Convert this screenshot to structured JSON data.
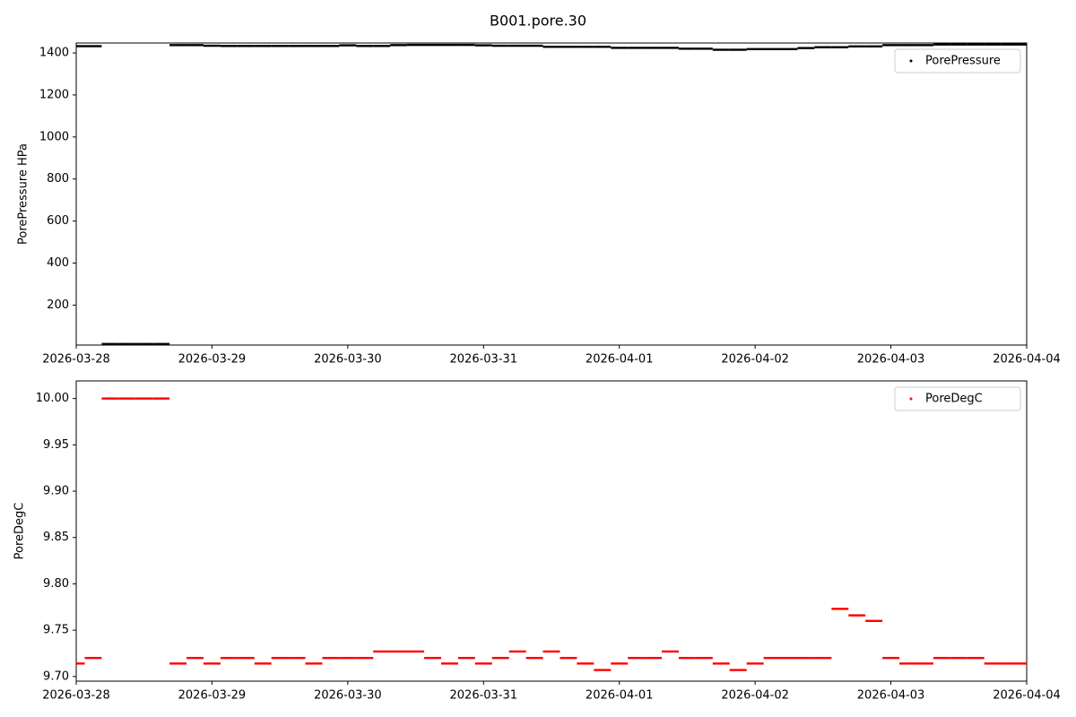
{
  "title": "B001.pore.30",
  "chart_data": [
    {
      "type": "scatter",
      "ylabel": "PorePressure HPa",
      "legend": "upper right",
      "xlim": [
        "2026-03-28",
        "2026-04-04"
      ],
      "xticks": [
        "2026-03-28",
        "2026-03-29",
        "2026-03-30",
        "2026-03-31",
        "2026-04-01",
        "2026-04-02",
        "2026-04-03",
        "2026-04-04"
      ],
      "ylim": [
        10,
        1447
      ],
      "yticks": [
        200,
        400,
        600,
        800,
        1000,
        1200,
        1400
      ],
      "x": [
        "2026-03-28T00:00",
        "2026-03-28T03:00",
        "2026-03-28T06:00",
        "2026-03-28T09:00",
        "2026-03-28T12:00",
        "2026-03-28T15:00",
        "2026-03-28T18:00",
        "2026-03-28T21:00",
        "2026-03-29T00:00",
        "2026-03-29T03:00",
        "2026-03-29T06:00",
        "2026-03-29T09:00",
        "2026-03-29T12:00",
        "2026-03-29T15:00",
        "2026-03-29T18:00",
        "2026-03-29T21:00",
        "2026-03-30T00:00",
        "2026-03-30T03:00",
        "2026-03-30T06:00",
        "2026-03-30T09:00",
        "2026-03-30T12:00",
        "2026-03-30T15:00",
        "2026-03-30T18:00",
        "2026-03-30T21:00",
        "2026-03-31T00:00",
        "2026-03-31T03:00",
        "2026-03-31T06:00",
        "2026-03-31T09:00",
        "2026-03-31T12:00",
        "2026-03-31T15:00",
        "2026-03-31T18:00",
        "2026-03-31T21:00",
        "2026-04-01T00:00",
        "2026-04-01T03:00",
        "2026-04-01T06:00",
        "2026-04-01T09:00",
        "2026-04-01T12:00",
        "2026-04-01T15:00",
        "2026-04-01T18:00",
        "2026-04-01T21:00",
        "2026-04-02T00:00",
        "2026-04-02T03:00",
        "2026-04-02T06:00",
        "2026-04-02T09:00",
        "2026-04-02T12:00",
        "2026-04-02T15:00",
        "2026-04-02T18:00",
        "2026-04-02T21:00",
        "2026-04-03T00:00",
        "2026-04-03T03:00",
        "2026-04-03T06:00",
        "2026-04-03T09:00",
        "2026-04-03T12:00",
        "2026-04-03T15:00",
        "2026-04-03T18:00",
        "2026-04-03T21:00",
        "2026-04-04T00:00"
      ],
      "series": [
        {
          "name": "PorePressure",
          "color": "#000000",
          "values": [
            1432,
            1432,
            15,
            15,
            15,
            15,
            1437,
            1437,
            1434,
            1433,
            1433,
            1433,
            1433,
            1433,
            1433,
            1433,
            1436,
            1433,
            1433,
            1437,
            1438,
            1438,
            1438,
            1438,
            1436,
            1434,
            1434,
            1434,
            1429,
            1429,
            1429,
            1429,
            1424,
            1424,
            1424,
            1424,
            1420,
            1420,
            1415,
            1415,
            1418,
            1418,
            1418,
            1423,
            1427,
            1427,
            1431,
            1431,
            1437,
            1437,
            1437,
            1440,
            1440,
            1440,
            1440,
            1440,
            1440
          ]
        }
      ]
    },
    {
      "type": "scatter",
      "ylabel": "PoreDegC",
      "legend": "upper right",
      "xlim": [
        "2026-03-28",
        "2026-04-04"
      ],
      "xticks": [
        "2026-03-28",
        "2026-03-29",
        "2026-03-30",
        "2026-03-31",
        "2026-04-01",
        "2026-04-02",
        "2026-04-03",
        "2026-04-04"
      ],
      "ylim": [
        9.695,
        10.019
      ],
      "yticks": [
        {
          "value": 9.7,
          "label": "9.70"
        },
        {
          "value": 9.75,
          "label": "9.75"
        },
        {
          "value": 9.8,
          "label": "9.80"
        },
        {
          "value": 9.85,
          "label": "9.85"
        },
        {
          "value": 9.9,
          "label": "9.90"
        },
        {
          "value": 9.95,
          "label": "9.95"
        },
        {
          "value": 10,
          "label": "10.00"
        }
      ],
      "x": [
        "2026-03-28T00:00",
        "2026-03-28T03:00",
        "2026-03-28T06:00",
        "2026-03-28T09:00",
        "2026-03-28T12:00",
        "2026-03-28T15:00",
        "2026-03-28T18:00",
        "2026-03-28T21:00",
        "2026-03-29T00:00",
        "2026-03-29T03:00",
        "2026-03-29T06:00",
        "2026-03-29T09:00",
        "2026-03-29T12:00",
        "2026-03-29T15:00",
        "2026-03-29T18:00",
        "2026-03-29T21:00",
        "2026-03-30T00:00",
        "2026-03-30T03:00",
        "2026-03-30T06:00",
        "2026-03-30T09:00",
        "2026-03-30T12:00",
        "2026-03-30T15:00",
        "2026-03-30T18:00",
        "2026-03-30T21:00",
        "2026-03-31T00:00",
        "2026-03-31T03:00",
        "2026-03-31T06:00",
        "2026-03-31T09:00",
        "2026-03-31T12:00",
        "2026-03-31T15:00",
        "2026-03-31T18:00",
        "2026-03-31T21:00",
        "2026-04-01T00:00",
        "2026-04-01T03:00",
        "2026-04-01T06:00",
        "2026-04-01T09:00",
        "2026-04-01T12:00",
        "2026-04-01T15:00",
        "2026-04-01T18:00",
        "2026-04-01T21:00",
        "2026-04-02T00:00",
        "2026-04-02T03:00",
        "2026-04-02T06:00",
        "2026-04-02T09:00",
        "2026-04-02T12:00",
        "2026-04-02T15:00",
        "2026-04-02T18:00",
        "2026-04-02T21:00",
        "2026-04-03T00:00",
        "2026-04-03T03:00",
        "2026-04-03T06:00",
        "2026-04-03T09:00",
        "2026-04-03T12:00",
        "2026-04-03T15:00",
        "2026-04-03T18:00",
        "2026-04-03T21:00",
        "2026-04-04T00:00"
      ],
      "series": [
        {
          "name": "PoreDegC",
          "color": "#ff0000",
          "values": [
            9.714,
            9.72,
            10,
            10,
            10,
            10,
            9.714,
            9.72,
            9.714,
            9.72,
            9.72,
            9.714,
            9.72,
            9.72,
            9.714,
            9.72,
            9.72,
            9.72,
            9.727,
            9.727,
            9.727,
            9.72,
            9.714,
            9.72,
            9.714,
            9.72,
            9.727,
            9.72,
            9.727,
            9.72,
            9.714,
            9.707,
            9.714,
            9.72,
            9.72,
            9.727,
            9.72,
            9.72,
            9.714,
            9.707,
            9.714,
            9.72,
            9.72,
            9.72,
            9.72,
            9.773,
            9.766,
            9.76,
            9.72,
            9.714,
            9.714,
            9.72,
            9.72,
            9.72,
            9.714,
            9.714,
            9.714
          ]
        }
      ]
    }
  ]
}
